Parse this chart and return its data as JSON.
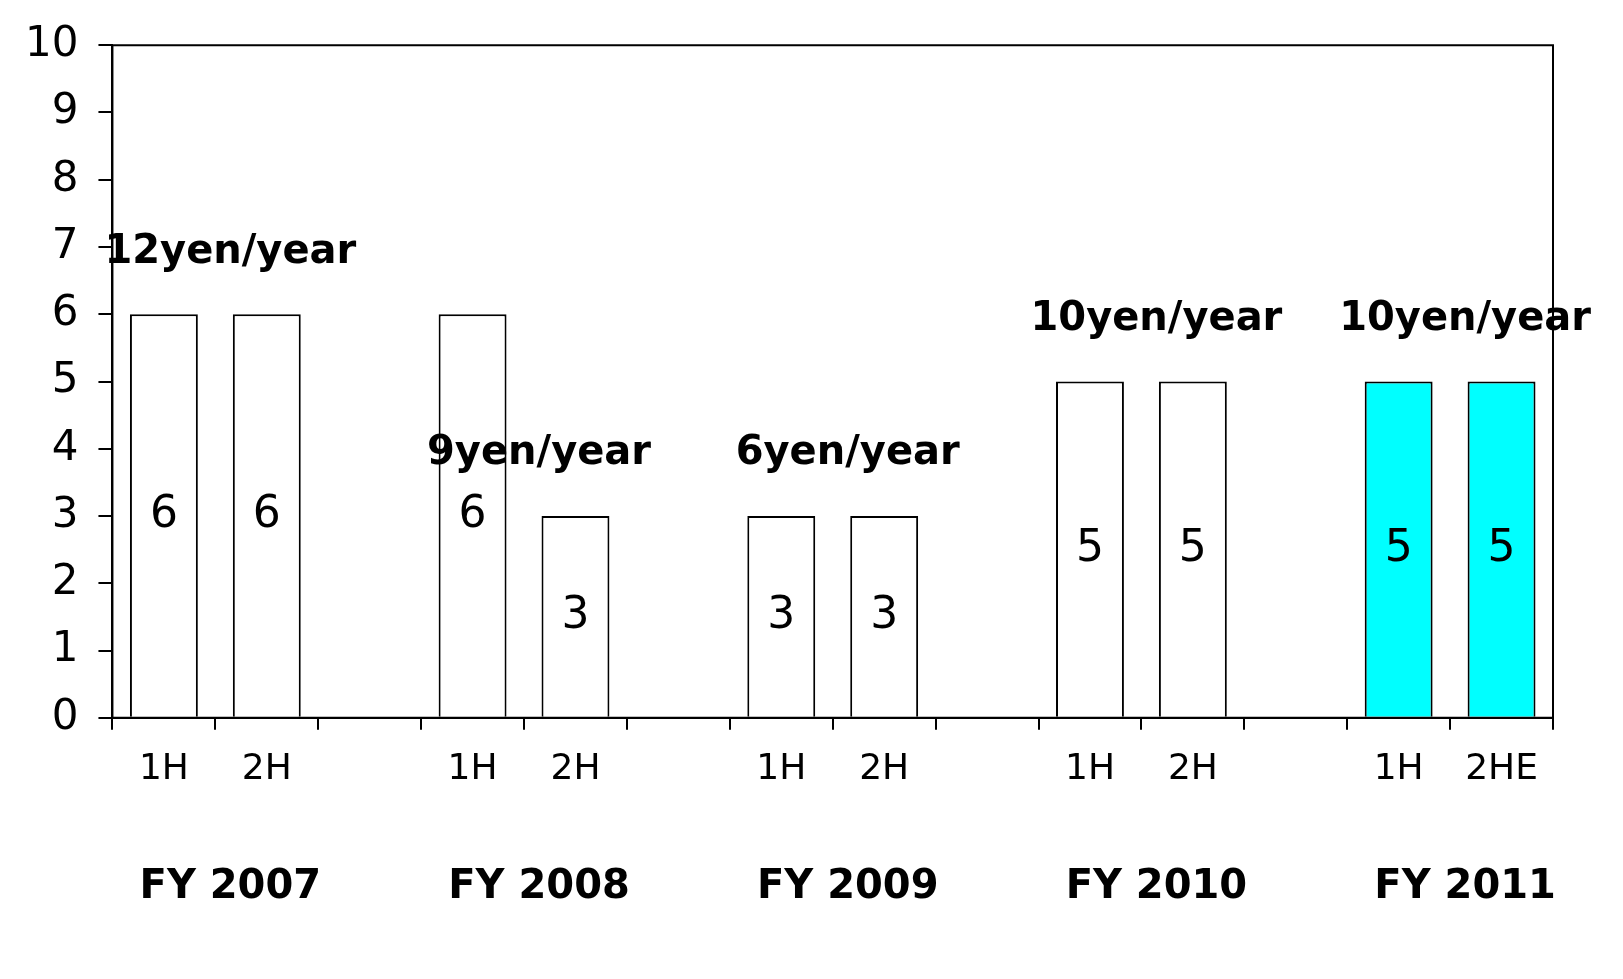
{
  "chart_data": {
    "type": "bar",
    "categories": [
      "1H",
      "2H",
      null,
      "1H",
      "2H",
      null,
      "1H",
      "2H",
      null,
      "1H",
      "2H",
      null,
      "1H",
      "2HE"
    ],
    "values": [
      6,
      6,
      null,
      6,
      3,
      null,
      3,
      3,
      null,
      5,
      5,
      null,
      5,
      5
    ],
    "colors": [
      "#ffffff",
      "#ffffff",
      "#ffffff",
      "#ffffff",
      "#ffffff",
      "#ffffff",
      "#ffffff",
      "#ffffff",
      "#ffffff",
      "#ffffff",
      "#ffffff",
      "#ffffff",
      "#00ffff",
      "#00ffff"
    ],
    "ylim": [
      0,
      10
    ],
    "yticks": [
      0,
      1,
      2,
      3,
      4,
      5,
      6,
      7,
      8,
      9,
      10
    ],
    "data_labels": true,
    "grid": false,
    "legend": false,
    "annotations": [
      "12yen/year",
      "9yen/year",
      "6yen/year",
      "10yen/year",
      "10yen/year",
      "FY 2007",
      "FY 2008",
      "FY 2009",
      "FY 2010",
      "FY 2011"
    ]
  }
}
